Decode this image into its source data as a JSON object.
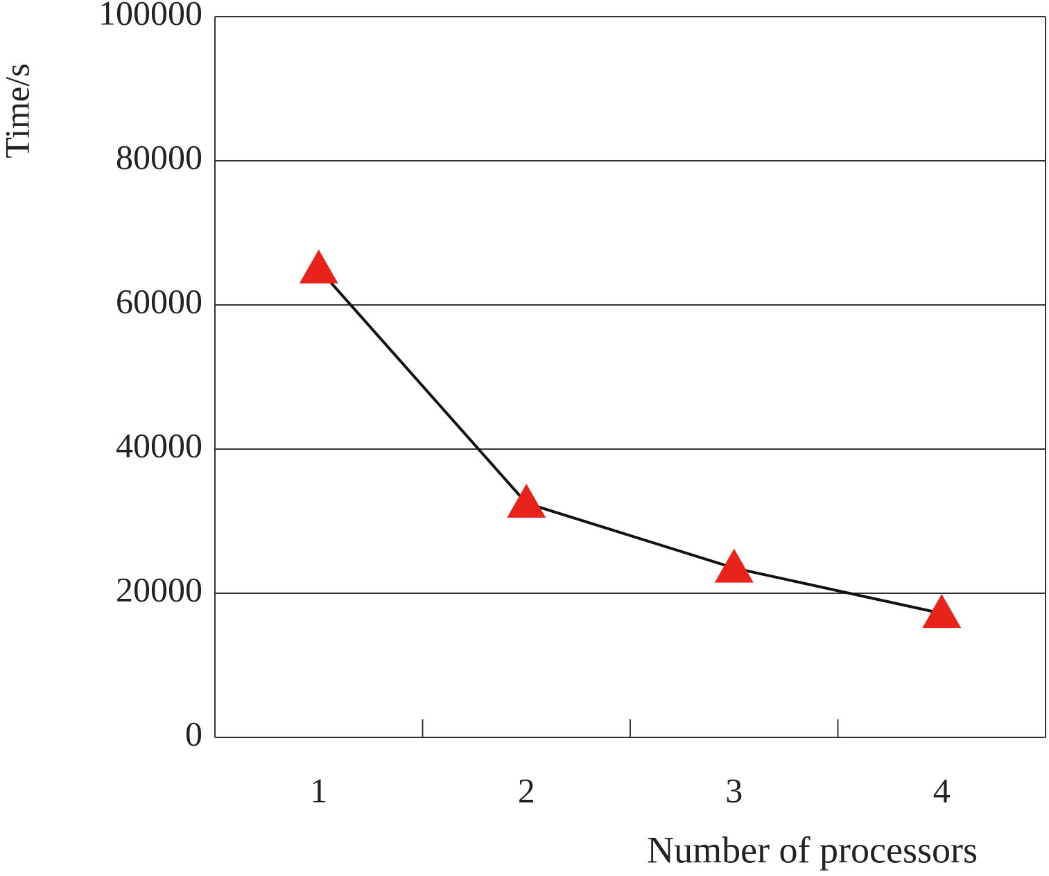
{
  "chart_data": {
    "type": "line",
    "x_label": "Number of processors",
    "y_label": "Time/s",
    "categories": [
      "1",
      "2",
      "3",
      "4"
    ],
    "values": [
      65000,
      32500,
      23500,
      17200
    ],
    "color": "#111111",
    "marker": "triangle",
    "marker_color": "#e8231c",
    "ylim": [
      0,
      100000
    ],
    "yticks": [
      0,
      20000,
      40000,
      60000,
      80000,
      100000
    ],
    "grid": true
  }
}
